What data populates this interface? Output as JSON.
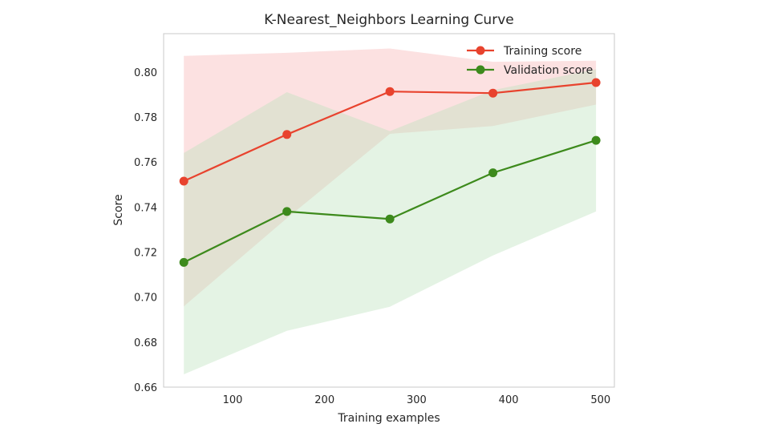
{
  "chart_data": {
    "type": "line",
    "title": "K-Nearest_Neighbors Learning Curve",
    "xlabel": "Training examples",
    "ylabel": "Score",
    "xlim": [
      25,
      515
    ],
    "ylim": [
      0.66,
      0.817
    ],
    "xticks": [
      100,
      200,
      300,
      400,
      500
    ],
    "yticks": [
      0.66,
      0.68,
      0.7,
      0.72,
      0.74,
      0.76,
      0.78,
      0.8
    ],
    "xtick_labels": [
      "100",
      "200",
      "300",
      "400",
      "500"
    ],
    "ytick_labels": [
      "0.66",
      "0.68",
      "0.70",
      "0.72",
      "0.74",
      "0.76",
      "0.78",
      "0.80"
    ],
    "grid": false,
    "legend_position": "top-right",
    "x": [
      47,
      159,
      271,
      383,
      495
    ],
    "series": [
      {
        "name": "Training score",
        "color": "#e8432e",
        "band_color": "#f7b4b4",
        "values": [
          0.7515,
          0.7722,
          0.7913,
          0.7906,
          0.7953
        ],
        "lower": [
          0.6959,
          0.735,
          0.7725,
          0.776,
          0.7855
        ],
        "upper": [
          0.8071,
          0.8085,
          0.8104,
          0.8045,
          0.805
        ]
      },
      {
        "name": "Validation score",
        "color": "#3d8a1c",
        "band_color": "#bfe3bf",
        "values": [
          0.7154,
          0.738,
          0.7347,
          0.7552,
          0.7696
        ],
        "lower": [
          0.6657,
          0.685,
          0.6957,
          0.7185,
          0.738
        ],
        "upper": [
          0.764,
          0.791,
          0.7737,
          0.7919,
          0.8012
        ]
      }
    ]
  }
}
